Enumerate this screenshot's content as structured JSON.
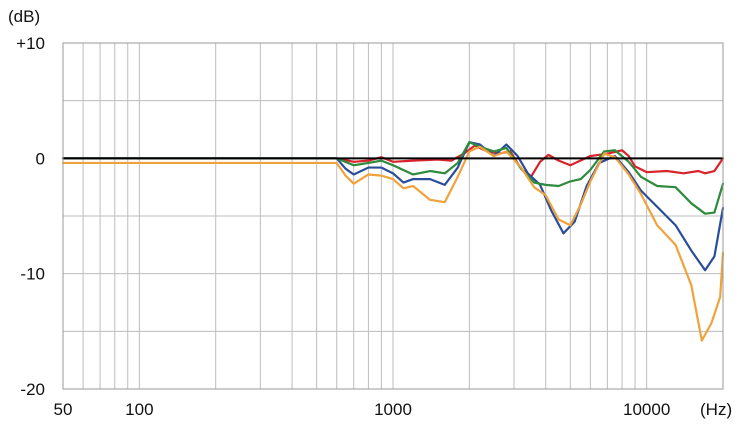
{
  "chart_data": {
    "type": "line",
    "x_scale": "log",
    "xlim": [
      50,
      20000
    ],
    "ylim": [
      -20,
      10
    ],
    "grid": true,
    "y_unit_label": "(dB)",
    "x_unit_label": "(Hz)",
    "y_ticks": [
      {
        "value": 10,
        "label": "+10"
      },
      {
        "value": 0,
        "label": "0"
      },
      {
        "value": -10,
        "label": "-10"
      },
      {
        "value": -20,
        "label": "-20"
      }
    ],
    "x_ticks": [
      {
        "value": 50,
        "label": "50"
      },
      {
        "value": 100,
        "label": "100"
      },
      {
        "value": 1000,
        "label": "1000"
      },
      {
        "value": 10000,
        "label": "10000"
      }
    ],
    "y_minor_grid": [
      -15,
      -5,
      5
    ],
    "reference_line": {
      "value": 0,
      "color": "#000000"
    },
    "series": [
      {
        "color": "#d9232a",
        "points": [
          [
            50,
            0
          ],
          [
            300,
            0
          ],
          [
            600,
            0
          ],
          [
            700,
            -0.3
          ],
          [
            800,
            -0.2
          ],
          [
            900,
            0.1
          ],
          [
            1000,
            -0.3
          ],
          [
            1200,
            -0.2
          ],
          [
            1500,
            -0.1
          ],
          [
            1700,
            -0.2
          ],
          [
            1900,
            0.4
          ],
          [
            2100,
            1.1
          ],
          [
            2300,
            0.7
          ],
          [
            2600,
            0.4
          ],
          [
            2900,
            0.6
          ],
          [
            3200,
            -0.9
          ],
          [
            3500,
            -1.6
          ],
          [
            3800,
            -0.3
          ],
          [
            4100,
            0.3
          ],
          [
            4500,
            -0.2
          ],
          [
            5000,
            -0.6
          ],
          [
            6000,
            0.2
          ],
          [
            7000,
            0.4
          ],
          [
            8000,
            0.7
          ],
          [
            8500,
            0.2
          ],
          [
            9000,
            -0.7
          ],
          [
            10000,
            -1.2
          ],
          [
            12000,
            -1.1
          ],
          [
            14000,
            -1.3
          ],
          [
            16000,
            -1.1
          ],
          [
            17000,
            -1.3
          ],
          [
            18500,
            -1.1
          ],
          [
            20000,
            0
          ]
        ]
      },
      {
        "color": "#2a4d9b",
        "points": [
          [
            50,
            0
          ],
          [
            300,
            0
          ],
          [
            600,
            0
          ],
          [
            650,
            -0.9
          ],
          [
            700,
            -1.4
          ],
          [
            800,
            -0.8
          ],
          [
            900,
            -0.8
          ],
          [
            1000,
            -1.3
          ],
          [
            1100,
            -2.1
          ],
          [
            1200,
            -1.8
          ],
          [
            1400,
            -1.8
          ],
          [
            1600,
            -2.3
          ],
          [
            1800,
            -0.8
          ],
          [
            2000,
            1.4
          ],
          [
            2200,
            1.2
          ],
          [
            2500,
            0.2
          ],
          [
            2800,
            1.2
          ],
          [
            3100,
            0.2
          ],
          [
            3400,
            -1.3
          ],
          [
            3800,
            -2.3
          ],
          [
            4200,
            -4.5
          ],
          [
            4700,
            -6.5
          ],
          [
            5200,
            -5.5
          ],
          [
            5800,
            -2.4
          ],
          [
            6500,
            -0.4
          ],
          [
            7500,
            0.2
          ],
          [
            8500,
            -1.2
          ],
          [
            9500,
            -2.8
          ],
          [
            11000,
            -4.2
          ],
          [
            13000,
            -5.8
          ],
          [
            15000,
            -8.0
          ],
          [
            17000,
            -9.7
          ],
          [
            18500,
            -8.5
          ],
          [
            20000,
            -4.3
          ]
        ]
      },
      {
        "color": "#2e8b3d",
        "points": [
          [
            50,
            0
          ],
          [
            300,
            0
          ],
          [
            600,
            0
          ],
          [
            700,
            -0.6
          ],
          [
            800,
            -0.4
          ],
          [
            900,
            -0.2
          ],
          [
            1000,
            -0.6
          ],
          [
            1200,
            -1.4
          ],
          [
            1400,
            -1.1
          ],
          [
            1600,
            -1.3
          ],
          [
            1800,
            -0.4
          ],
          [
            2000,
            1.4
          ],
          [
            2200,
            1.0
          ],
          [
            2500,
            0.6
          ],
          [
            2800,
            0.9
          ],
          [
            3200,
            -0.9
          ],
          [
            3600,
            -2.1
          ],
          [
            4000,
            -2.3
          ],
          [
            4500,
            -2.4
          ],
          [
            5000,
            -2.0
          ],
          [
            5500,
            -1.8
          ],
          [
            6000,
            -1.0
          ],
          [
            6800,
            0.6
          ],
          [
            7500,
            0.7
          ],
          [
            8500,
            -0.3
          ],
          [
            9500,
            -1.6
          ],
          [
            11000,
            -2.4
          ],
          [
            13000,
            -2.5
          ],
          [
            15000,
            -3.9
          ],
          [
            17000,
            -4.8
          ],
          [
            18500,
            -4.7
          ],
          [
            20000,
            -2.2
          ]
        ]
      },
      {
        "color": "#f0a23c",
        "points": [
          [
            50,
            -0.4
          ],
          [
            300,
            -0.4
          ],
          [
            600,
            -0.4
          ],
          [
            650,
            -1.5
          ],
          [
            700,
            -2.2
          ],
          [
            800,
            -1.4
          ],
          [
            900,
            -1.5
          ],
          [
            1000,
            -1.8
          ],
          [
            1100,
            -2.6
          ],
          [
            1200,
            -2.4
          ],
          [
            1400,
            -3.6
          ],
          [
            1600,
            -3.8
          ],
          [
            1800,
            -1.6
          ],
          [
            2000,
            0.6
          ],
          [
            2200,
            1.0
          ],
          [
            2500,
            0.2
          ],
          [
            2800,
            0.6
          ],
          [
            3200,
            -0.8
          ],
          [
            3600,
            -2.5
          ],
          [
            4000,
            -3.2
          ],
          [
            4500,
            -5.3
          ],
          [
            5000,
            -5.8
          ],
          [
            5500,
            -4.0
          ],
          [
            6000,
            -2.0
          ],
          [
            6800,
            0.4
          ],
          [
            7500,
            0.1
          ],
          [
            8500,
            -1.4
          ],
          [
            9500,
            -3.1
          ],
          [
            11000,
            -5.8
          ],
          [
            13000,
            -7.5
          ],
          [
            15000,
            -11.0
          ],
          [
            16500,
            -15.8
          ],
          [
            18000,
            -14.3
          ],
          [
            19500,
            -12.0
          ],
          [
            20000,
            -8.2
          ]
        ]
      }
    ]
  }
}
